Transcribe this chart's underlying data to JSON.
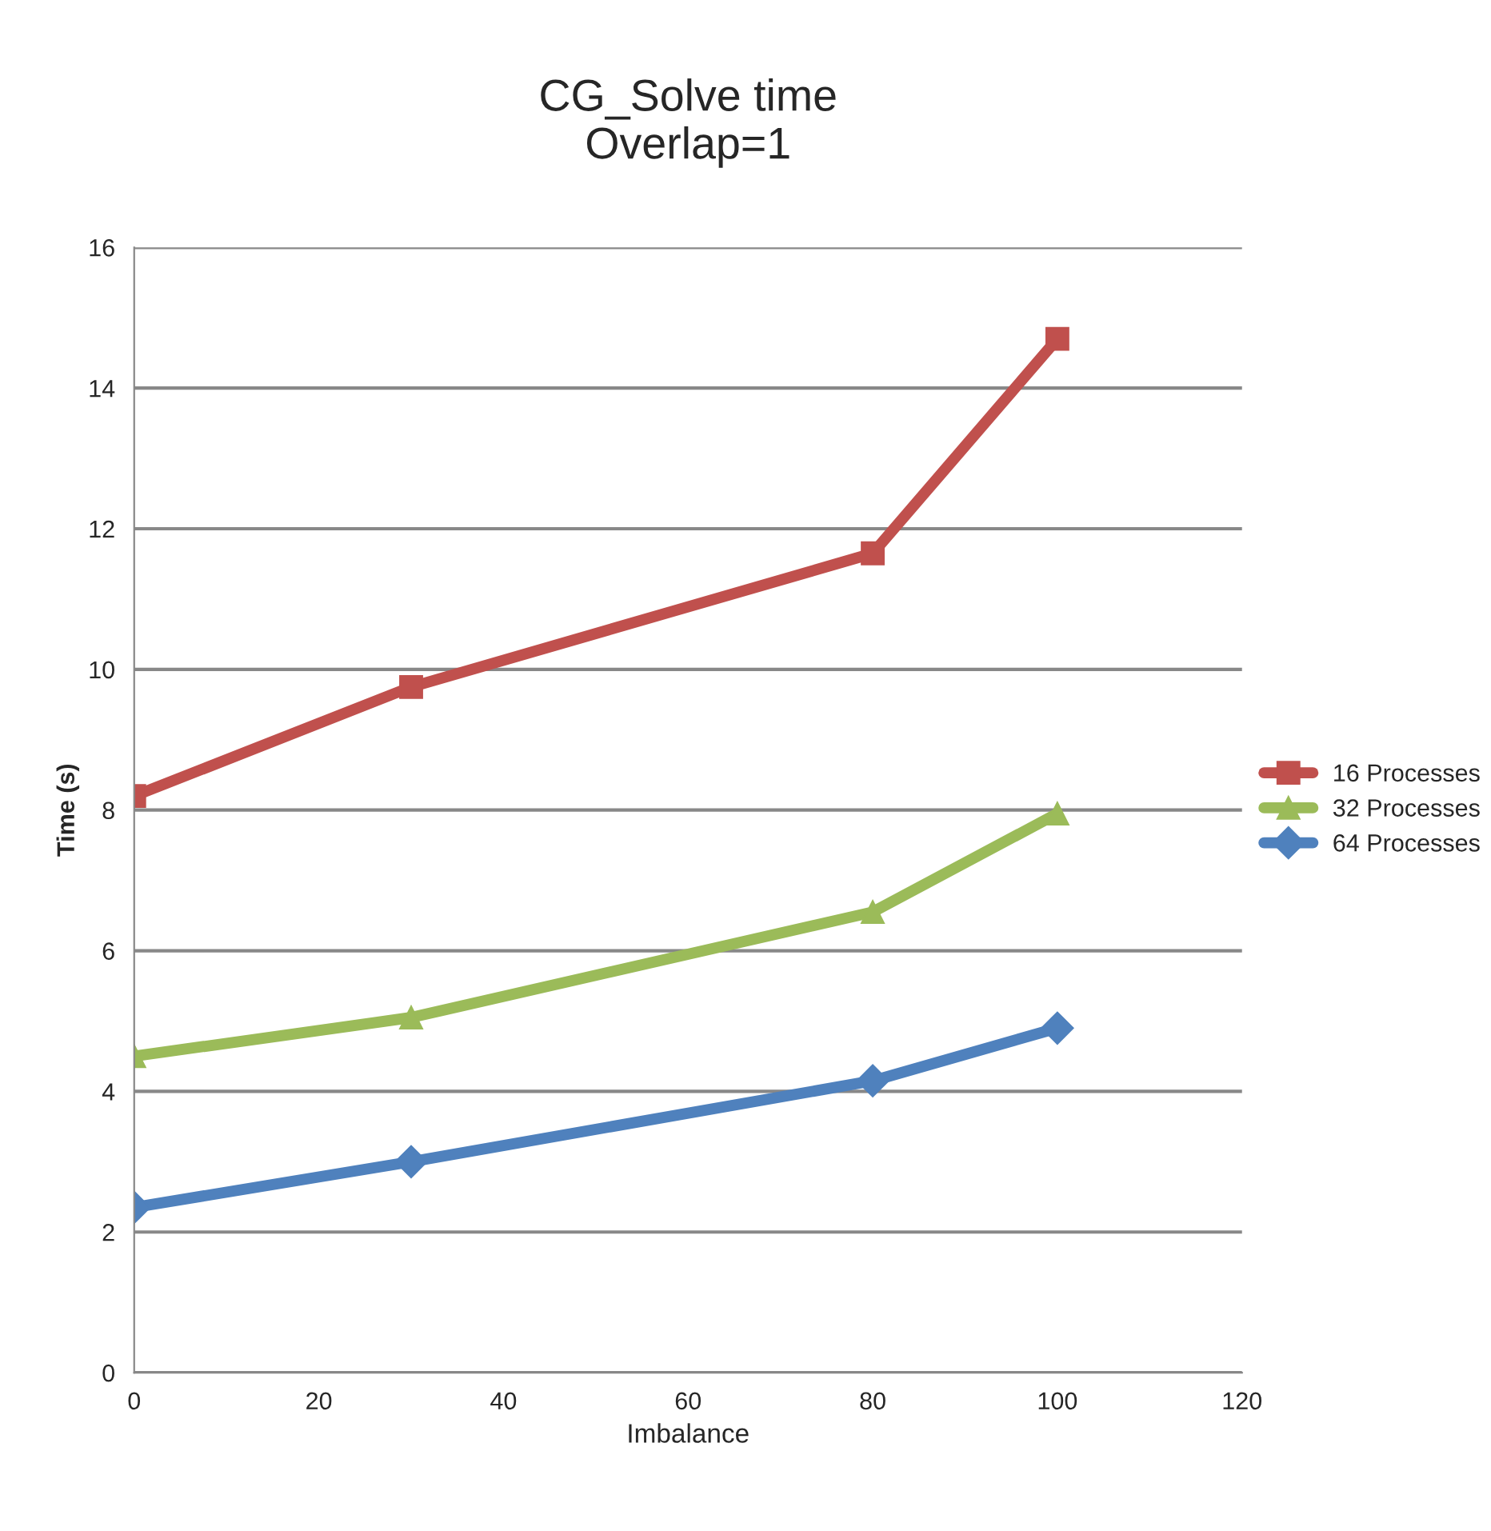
{
  "chart_data": {
    "type": "line",
    "title": "CG_Solve time\nOverlap=1",
    "xlabel": "Imbalance",
    "ylabel": "Time (s)",
    "x": [
      0,
      30,
      80,
      100
    ],
    "series": [
      {
        "name": "16 Processes",
        "color": "#c0504d",
        "marker": "square",
        "values": [
          8.2,
          9.75,
          11.65,
          14.7
        ]
      },
      {
        "name": "32 Processes",
        "color": "#9bbb59",
        "marker": "triangle",
        "values": [
          4.5,
          5.05,
          6.55,
          7.95
        ]
      },
      {
        "name": "64 Processes",
        "color": "#4f81bd",
        "marker": "diamond",
        "values": [
          2.35,
          3.0,
          4.15,
          4.9
        ]
      }
    ],
    "xlim": [
      0,
      120
    ],
    "xticks": [
      0,
      20,
      40,
      60,
      80,
      100,
      120
    ],
    "ylim": [
      0,
      16
    ],
    "yticks": [
      0,
      2,
      4,
      6,
      8,
      10,
      12,
      14,
      16
    ],
    "grid": "y",
    "legend": "right",
    "line_style": "solid"
  }
}
